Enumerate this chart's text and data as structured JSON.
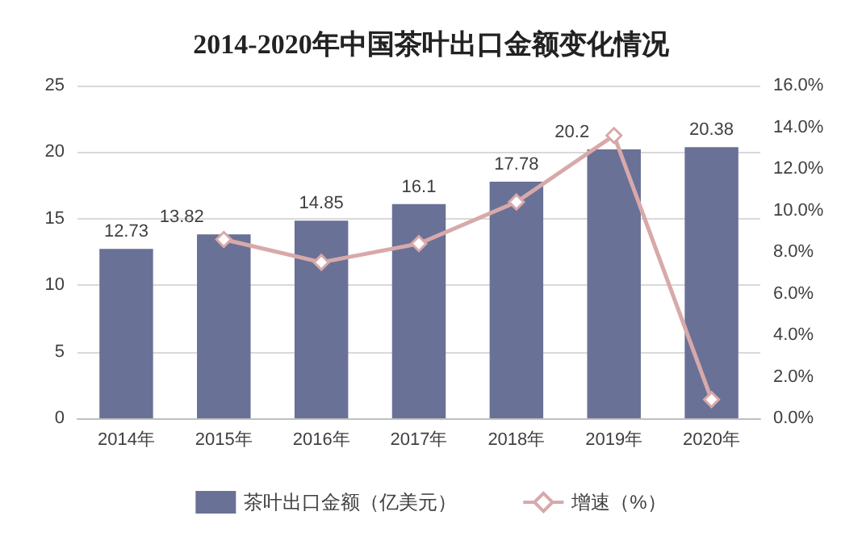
{
  "chart_data": {
    "type": "line",
    "title": "2014-2020年中国茶叶出口金额变化情况",
    "categories": [
      "2014年",
      "2015年",
      "2016年",
      "2017年",
      "2018年",
      "2019年",
      "2020年"
    ],
    "series": [
      {
        "name": "茶叶出口金额（亿美元）",
        "type": "bar",
        "color": "#6a7196",
        "values": [
          12.73,
          13.82,
          14.85,
          16.1,
          17.78,
          20.2,
          20.38
        ],
        "data_labels": true
      },
      {
        "name": "增速（%）",
        "axis": "y2",
        "color": "#d8a9aa",
        "marker": "diamond",
        "values": [
          null,
          8.6,
          7.5,
          8.4,
          10.4,
          13.6,
          0.9
        ]
      }
    ],
    "ylim": [
      0,
      25
    ],
    "yticks": [
      0,
      5,
      10,
      15,
      20,
      25
    ],
    "y2lim": [
      0,
      16
    ],
    "y2ticks": [
      {
        "value": 0,
        "label": "0.0%"
      },
      {
        "value": 2,
        "label": "2.0%"
      },
      {
        "value": 4,
        "label": "4.0%"
      },
      {
        "value": 6,
        "label": "6.0%"
      },
      {
        "value": 8,
        "label": "8.0%"
      },
      {
        "value": 10,
        "label": "10.0%"
      },
      {
        "value": 12,
        "label": "12.0%"
      },
      {
        "value": 14,
        "label": "14.0%"
      },
      {
        "value": 16,
        "label": "16.0%"
      }
    ],
    "grid": "y",
    "legend": "bottom"
  }
}
